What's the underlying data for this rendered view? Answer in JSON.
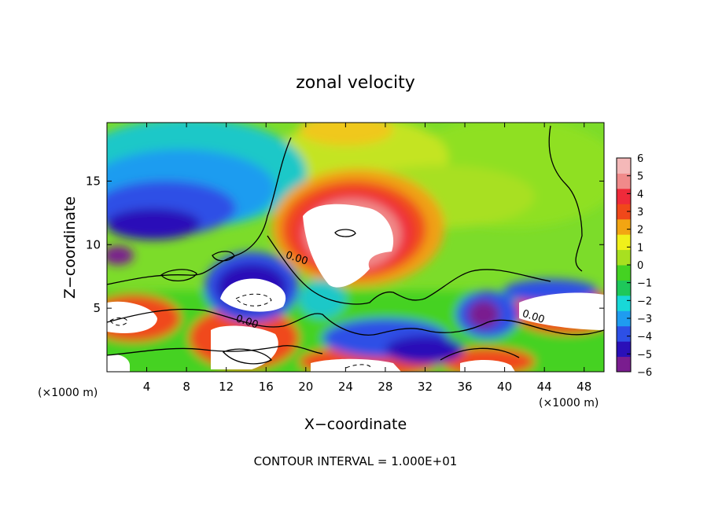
{
  "chart_data": {
    "type": "heatmap",
    "title": "zonal velocity",
    "xlabel": "X−coordinate",
    "ylabel": "Z−coordinate",
    "x_unit_label": "(×1000 m)",
    "z_unit_label": "(×1000 m)",
    "xlim": [
      0,
      50
    ],
    "ylim": [
      0,
      19.6
    ],
    "x_ticks": [
      4,
      8,
      12,
      16,
      20,
      24,
      28,
      32,
      36,
      40,
      44,
      48
    ],
    "y_ticks": [
      5,
      10,
      15
    ],
    "colorbar": {
      "ticks": [
        6,
        5,
        4,
        3,
        2,
        1,
        0,
        -1,
        -2,
        -3,
        -4,
        -5,
        -6
      ],
      "tick_labels": [
        "6",
        "5",
        "4",
        "3",
        "2",
        "1",
        "0",
        "−1",
        "−2",
        "−3",
        "−4",
        "−5",
        "−6"
      ],
      "range": [
        -6,
        6
      ],
      "colors": [
        "#7a1d8f",
        "#2a10b8",
        "#2d50e6",
        "#1f9cf0",
        "#18d8d8",
        "#1ec85a",
        "#44d222",
        "#a8e020",
        "#f0f01a",
        "#f2a512",
        "#f0481a",
        "#ef2a3a",
        "#f08a8a",
        "#f4b8b8"
      ]
    },
    "contour_labels": [
      {
        "text": "0.00",
        "x": 19,
        "z": 8.7
      },
      {
        "text": "0.00",
        "x": 14,
        "z": 3.7
      },
      {
        "text": "0.00",
        "x": 42.8,
        "z": 4.1
      }
    ],
    "features": {
      "positive_core": {
        "x": [
          19,
          32
        ],
        "z": [
          7,
          14
        ],
        "value": ">6"
      },
      "positive_band_lower": {
        "x": [
          0,
          50
        ],
        "z": [
          0,
          7
        ],
        "value": "4 to >6"
      },
      "negative_upper_left": {
        "x": [
          0,
          17
        ],
        "z": [
          9,
          17
        ],
        "value": "-3 to -6"
      },
      "negative_lower_eddies": {
        "x": [
          10,
          45
        ],
        "z": [
          0,
          7
        ],
        "value": "-4 to <-6"
      }
    },
    "footer": "CONTOUR INTERVAL = 1.000E+01"
  }
}
